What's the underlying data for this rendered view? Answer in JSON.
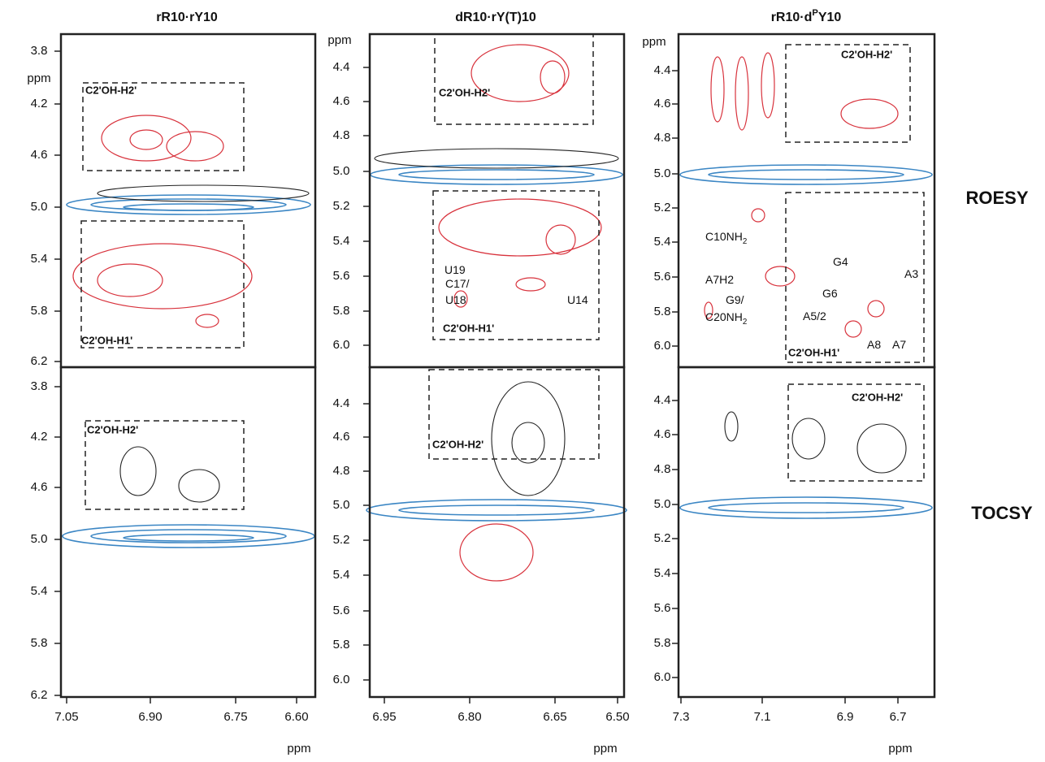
{
  "figure": {
    "row_labels": [
      "ROESY",
      "TOCSY"
    ],
    "panels": [
      {
        "title": "rR10·rY10",
        "x_ticks": [
          "7.05",
          "6.90",
          "6.75",
          "6.60"
        ],
        "x_unit": "ppm",
        "roesy": {
          "y_ticks": [
            "3.8",
            "4.2",
            "4.6",
            "5.0",
            "5.4",
            "5.8",
            "6.2"
          ],
          "y_unit": "ppm",
          "boxes": [
            "C2'OH-H2'",
            "C2'OH-H1'"
          ],
          "labels": []
        },
        "tocsy": {
          "y_ticks": [
            "3.8",
            "4.2",
            "4.6",
            "5.0",
            "5.4",
            "5.8",
            "6.2"
          ],
          "boxes": [
            "C2'OH-H2'"
          ],
          "labels": []
        }
      },
      {
        "title": "dR10·rY(T)10",
        "x_ticks": [
          "6.95",
          "6.80",
          "6.65",
          "6.50"
        ],
        "x_unit": "ppm",
        "roesy": {
          "y_ticks": [
            "4.4",
            "4.6",
            "4.8",
            "5.0",
            "5.2",
            "5.4",
            "5.6",
            "5.8",
            "6.0"
          ],
          "y_unit": "ppm",
          "boxes": [
            "C2'OH-H2'",
            "C2'OH-H1'"
          ],
          "labels": [
            [
              "C17/"
            ],
            [
              "U18"
            ],
            [
              "U19"
            ],
            [
              "U14"
            ]
          ]
        },
        "tocsy": {
          "y_ticks": [
            "4.4",
            "4.6",
            "4.8",
            "5.0",
            "5.2",
            "5.4",
            "5.6",
            "5.8",
            "6.0"
          ],
          "boxes": [
            "C2'OH-H2'"
          ],
          "labels": []
        }
      },
      {
        "title": [
          "rR10·d",
          "P",
          "Y10"
        ],
        "x_ticks": [
          "7.3",
          "7.1",
          "6.9",
          "6.7"
        ],
        "x_unit": "ppm",
        "roesy": {
          "y_ticks": [
            "4.4",
            "4.6",
            "4.8",
            "5.0",
            "5.2",
            "5.4",
            "5.6",
            "5.8",
            "6.0"
          ],
          "y_unit": "ppm",
          "boxes": [
            "C2'OH-H2'",
            "C2'OH-H1'"
          ],
          "labels": [
            [
              "C10NH",
              "2"
            ],
            [
              "A7H2"
            ],
            [
              "G9/"
            ],
            [
              "C20NH",
              "2"
            ],
            [
              "G4"
            ],
            [
              "G6"
            ],
            [
              "A3"
            ],
            [
              "A5/2"
            ],
            [
              "A8"
            ],
            [
              "A7"
            ]
          ]
        },
        "tocsy": {
          "y_ticks": [
            "4.4",
            "4.6",
            "4.8",
            "5.0",
            "5.2",
            "5.4",
            "5.6",
            "5.8",
            "6.0"
          ],
          "boxes": [
            "C2'OH-H2'"
          ],
          "labels": []
        }
      }
    ]
  }
}
